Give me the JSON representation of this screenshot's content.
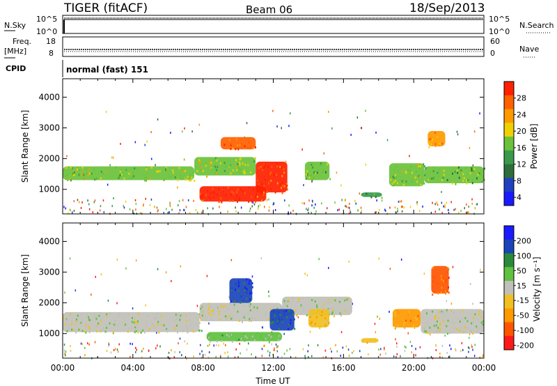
{
  "header": {
    "station": "TIGER (fitACF)",
    "beam": "Beam 06",
    "date": "18/Sep/2013"
  },
  "strips": {
    "nsky_label": "N.Sky",
    "nsky_ticks": [
      "10^5",
      "10^0"
    ],
    "nsearch_label": "N.Search",
    "nsearch_ticks": [
      "10^5",
      "10^0"
    ],
    "freq_label_1": "Freq.",
    "freq_label_2": "[MHz]",
    "freq_ticks": [
      "18",
      "8"
    ],
    "nave_label": "Nave",
    "nave_ticks": [
      "60",
      "0"
    ],
    "cpid_label": "CPID",
    "cpid_text": "normal (fast) 151"
  },
  "colors": {
    "power": [
      "#1a1aff",
      "#2040c0",
      "#2e6e3a",
      "#3a9a4a",
      "#6ac23a",
      "#f0d000",
      "#ff9900",
      "#ff6000",
      "#ff2000"
    ],
    "velocity": [
      "#1a1aff",
      "#1a44b8",
      "#2a8a3a",
      "#60c040",
      "#c0c0b8",
      "#f0c020",
      "#ff9900",
      "#ff5500",
      "#ff1a1a"
    ]
  },
  "chart_data": [
    {
      "type": "heatmap",
      "title": "",
      "ylabel": "Slant Range [km]",
      "xlabel": "",
      "ylim": [
        200,
        4600
      ],
      "xlim": [
        "00:00",
        "24:00"
      ],
      "yticks": [
        "1000",
        "2000",
        "3000",
        "4000"
      ],
      "colorbar": {
        "label": "Power [dB]",
        "ticks": [
          "28",
          "24",
          "20",
          "16",
          "12",
          "8",
          "4"
        ],
        "range": [
          0,
          30
        ]
      },
      "regions": [
        {
          "t0": 0.0,
          "t1": 7.5,
          "r0": 1300,
          "r1": 1750,
          "value": 16
        },
        {
          "t0": 7.5,
          "t1": 11.0,
          "r0": 1450,
          "r1": 2050,
          "value": 16
        },
        {
          "t0": 11.0,
          "t1": 12.8,
          "r0": 900,
          "r1": 1900,
          "value": 27
        },
        {
          "t0": 7.8,
          "t1": 11.6,
          "r0": 600,
          "r1": 1100,
          "value": 28
        },
        {
          "t0": 9.0,
          "t1": 11.0,
          "r0": 2300,
          "r1": 2700,
          "value": 24
        },
        {
          "t0": 13.8,
          "t1": 15.2,
          "r0": 1300,
          "r1": 1900,
          "value": 14
        },
        {
          "t0": 18.6,
          "t1": 20.6,
          "r0": 1100,
          "r1": 1850,
          "value": 16
        },
        {
          "t0": 20.6,
          "t1": 24.0,
          "r0": 1200,
          "r1": 1750,
          "value": 14
        },
        {
          "t0": 20.8,
          "t1": 21.8,
          "r0": 2400,
          "r1": 2900,
          "value": 22
        },
        {
          "t0": 17.0,
          "t1": 18.2,
          "r0": 750,
          "r1": 900,
          "value": 12
        }
      ]
    },
    {
      "type": "heatmap",
      "title": "",
      "ylabel": "Slant Range [km]",
      "xlabel": "Time UT",
      "ylim": [
        200,
        4600
      ],
      "xlim": [
        "00:00",
        "24:00"
      ],
      "yticks": [
        "1000",
        "2000",
        "3000",
        "4000"
      ],
      "xticks": [
        "00:00",
        "04:00",
        "08:00",
        "12:00",
        "16:00",
        "20:00",
        "00:00"
      ],
      "colorbar": {
        "label": "Velocity [m s⁻¹]",
        "ticks": [
          "200",
          "100",
          "50",
          "15",
          "-15",
          "-50",
          "-100",
          "-200"
        ],
        "range": [
          -250,
          250
        ]
      },
      "regions": [
        {
          "t0": 0.0,
          "t1": 7.8,
          "r0": 1050,
          "r1": 1700,
          "value": 0
        },
        {
          "t0": 7.8,
          "t1": 12.5,
          "r0": 1400,
          "r1": 2000,
          "value": 0
        },
        {
          "t0": 12.5,
          "t1": 16.5,
          "r0": 1600,
          "r1": 2200,
          "value": 0
        },
        {
          "t0": 9.5,
          "t1": 10.8,
          "r0": 2000,
          "r1": 2800,
          "value": 180
        },
        {
          "t0": 8.2,
          "t1": 12.5,
          "r0": 750,
          "r1": 1050,
          "value": 40
        },
        {
          "t0": 11.8,
          "t1": 13.2,
          "r0": 1100,
          "r1": 1800,
          "value": 150
        },
        {
          "t0": 14.0,
          "t1": 15.2,
          "r0": 1200,
          "r1": 1800,
          "value": -80
        },
        {
          "t0": 18.8,
          "t1": 20.4,
          "r0": 1200,
          "r1": 1800,
          "value": -90
        },
        {
          "t0": 20.4,
          "t1": 24.0,
          "r0": 1000,
          "r1": 1800,
          "value": 0
        },
        {
          "t0": 21.0,
          "t1": 22.0,
          "r0": 2300,
          "r1": 3200,
          "value": -150
        },
        {
          "t0": 17.0,
          "t1": 18.0,
          "r0": 700,
          "r1": 850,
          "value": -60
        }
      ]
    }
  ]
}
